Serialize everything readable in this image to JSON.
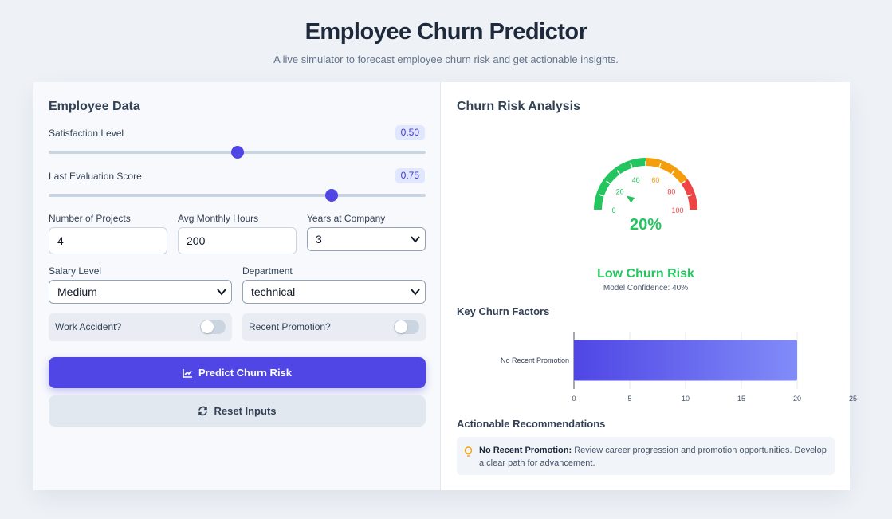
{
  "header": {
    "title": "Employee Churn Predictor",
    "subtitle": "A live simulator to forecast employee churn risk and get actionable insights."
  },
  "form": {
    "heading": "Employee Data",
    "satisfaction": {
      "label": "Satisfaction Level",
      "value": "0.50",
      "fraction": 0.5
    },
    "evaluation": {
      "label": "Last Evaluation Score",
      "value": "0.75",
      "fraction": 0.75
    },
    "projects": {
      "label": "Number of Projects",
      "value": "4"
    },
    "hours": {
      "label": "Avg Monthly Hours",
      "value": "200"
    },
    "years": {
      "label": "Years at Company",
      "value": "3"
    },
    "salary": {
      "label": "Salary Level",
      "value": "Medium"
    },
    "department": {
      "label": "Department",
      "value": "technical"
    },
    "work_accident": {
      "label": "Work Accident?",
      "on": false
    },
    "promotion": {
      "label": "Recent Promotion?",
      "on": false
    },
    "predict_label": "Predict Churn Risk",
    "reset_label": "Reset Inputs",
    "accent": "#4f46e5"
  },
  "analysis": {
    "heading": "Churn Risk Analysis",
    "gauge": {
      "value": 20,
      "value_text": "20%",
      "ticks": [
        "0",
        "20",
        "40",
        "60",
        "80",
        "100"
      ],
      "colors": {
        "low": "#22c55e",
        "medium": "#f59e0b",
        "high": "#ef4444"
      }
    },
    "risk_label": "Low Churn Risk",
    "confidence": "Model Confidence: 40%",
    "factors_heading": "Key Churn Factors",
    "recs_heading": "Actionable Recommendations",
    "recommendation": {
      "title": "No Recent Promotion:",
      "text": "Review career progression and promotion opportunities. Develop a clear path for advancement.",
      "icon": "lightbulb-icon"
    }
  },
  "chart_data": {
    "type": "bar",
    "orientation": "horizontal",
    "categories": [
      "No Recent Promotion"
    ],
    "values": [
      20
    ],
    "xlim": [
      0,
      25
    ],
    "x_ticks": [
      "0",
      "5",
      "10",
      "15",
      "20",
      "25"
    ],
    "grid": true
  }
}
